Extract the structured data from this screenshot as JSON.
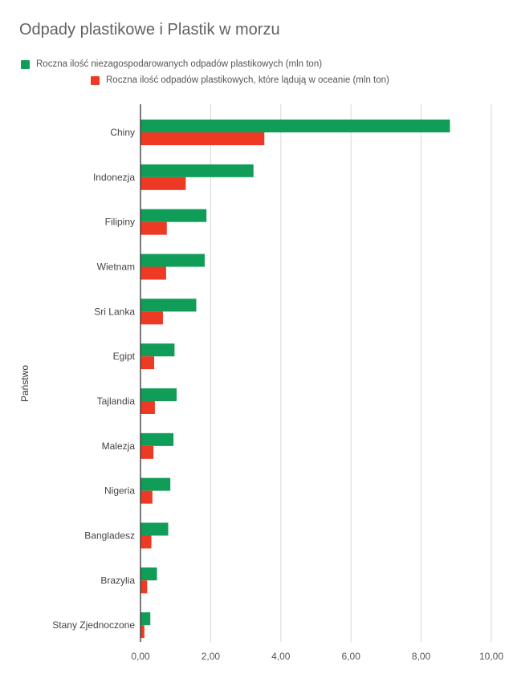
{
  "chart_data": {
    "type": "bar",
    "orientation": "horizontal",
    "title": "Odpady plastikowe i Plastik w morzu",
    "ylabel": "Państwo",
    "xlabel": "",
    "categories": [
      "Chiny",
      "Indonezja",
      "Filipiny",
      "Wietnam",
      "Sri Lanka",
      "Egipt",
      "Tajlandia",
      "Malezja",
      "Nigeria",
      "Bangladesz",
      "Brazylia",
      "Stany Zjednoczone"
    ],
    "series": [
      {
        "name": "Roczna ilość niezagospodarowanych odpadów plastikowych (mln ton)",
        "color": "#0f9d58",
        "values": [
          8.82,
          3.22,
          1.88,
          1.83,
          1.59,
          0.97,
          1.03,
          0.94,
          0.85,
          0.79,
          0.47,
          0.28
        ]
      },
      {
        "name": "Roczna ilość odpadów plastikowych, które lądują w oceanie (mln ton)",
        "color": "#ee3a24",
        "values": [
          3.53,
          1.29,
          0.75,
          0.73,
          0.64,
          0.39,
          0.41,
          0.37,
          0.34,
          0.31,
          0.19,
          0.11
        ]
      }
    ],
    "xlim": [
      0,
      10
    ],
    "xticks": [
      0,
      2,
      4,
      6,
      8,
      10
    ],
    "xtick_labels": [
      "0,00",
      "2,00",
      "4,00",
      "6,00",
      "8,00",
      "10,00"
    ],
    "grid": true,
    "legend_position": "top-left"
  }
}
